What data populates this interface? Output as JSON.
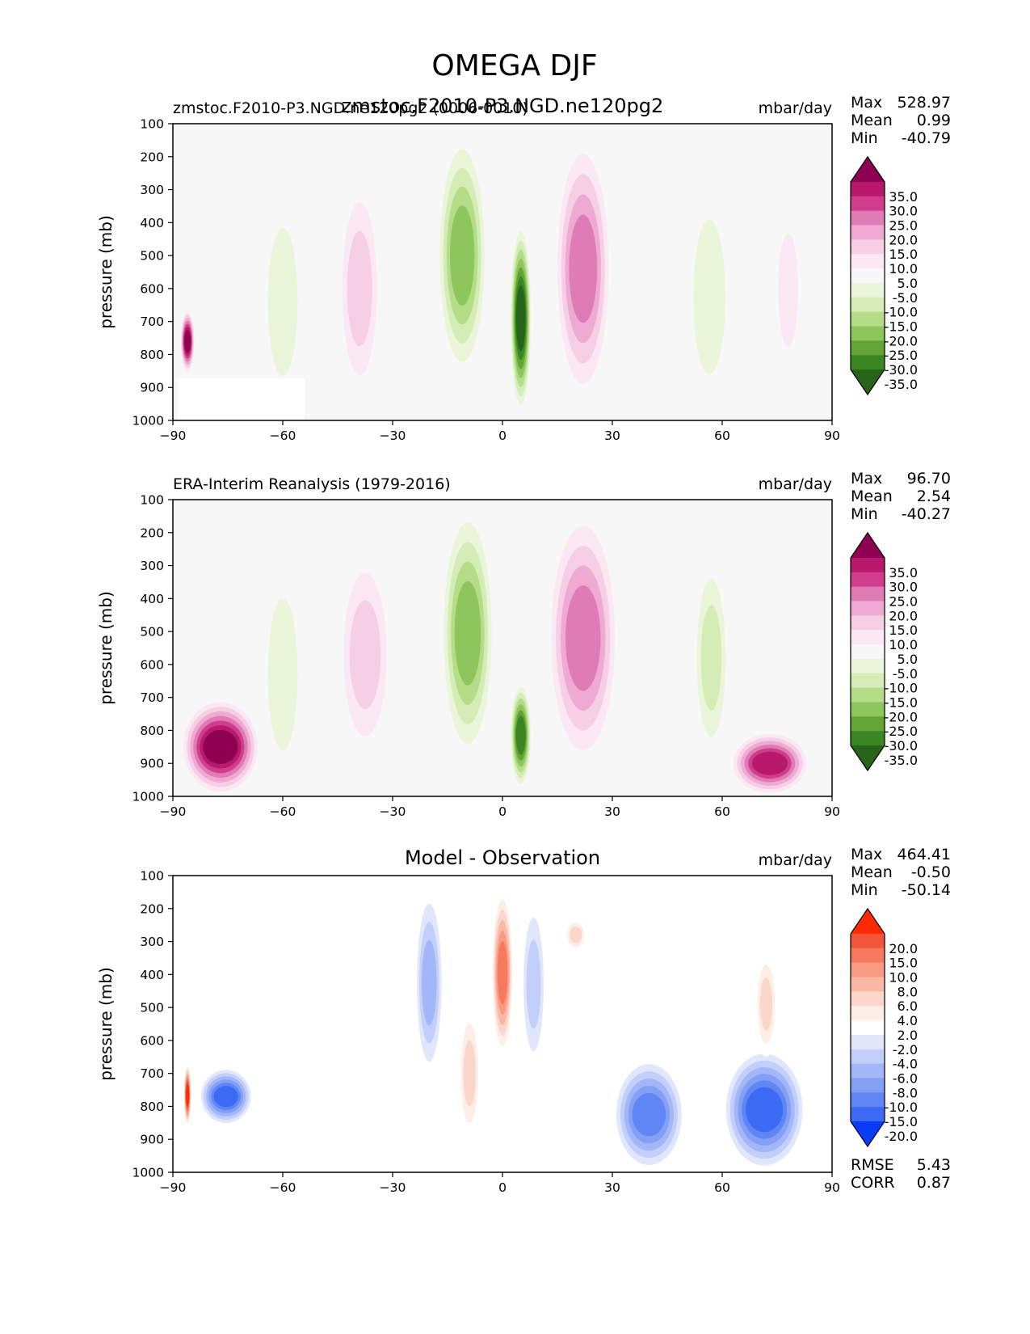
{
  "title": "OMEGA DJF",
  "chart_data": [
    {
      "type": "heatmap",
      "panel": "test",
      "left_title": "zmstoc.F2010-P3.NGD.ne120pg2 (0006-0010)",
      "center_title": "zmstoc.F2010-P3.NGD.ne120pg2",
      "units": "mbar/day",
      "ylabel": "pressure (mb)",
      "xlim": [
        -90,
        90
      ],
      "ylim": [
        1000,
        100
      ],
      "x_ticks": [
        "−90",
        "−60",
        "−30",
        "0",
        "30",
        "60",
        "90"
      ],
      "y_ticks": [
        "100",
        "200",
        "300",
        "400",
        "500",
        "600",
        "700",
        "800",
        "900",
        "1000"
      ],
      "stats": [
        {
          "label": "Max",
          "value": "528.97"
        },
        {
          "label": "Mean",
          "value": "0.99"
        },
        {
          "label": "Min",
          "value": "-40.79"
        }
      ],
      "colorbar": {
        "levels": [
          "35.0",
          "30.0",
          "25.0",
          "20.0",
          "15.0",
          "10.0",
          "5.0",
          "-5.0",
          "-10.0",
          "-15.0",
          "-20.0",
          "-25.0",
          "-30.0",
          "-35.0"
        ],
        "colors": [
          "#8e0152",
          "#b8196b",
          "#cf3d8c",
          "#e07cb5",
          "#eeaad2",
          "#f6cfe5",
          "#fbe8f2",
          "#f7f7f7",
          "#eaf5da",
          "#d4edb6",
          "#b5dd88",
          "#8cc65d",
          "#63a535",
          "#3a8623",
          "#276419"
        ]
      },
      "features": [
        {
          "name": "se-deep-descent",
          "lat": [
            -88,
            -84
          ],
          "p": [
            660,
            860
          ],
          "value": 40
        },
        {
          "name": "sh-subtropical-rising",
          "lat": [
            -66,
            -54
          ],
          "p": [
            280,
            1000
          ],
          "value": -8
        },
        {
          "name": "sh-subtropical-sinking",
          "lat": [
            -45,
            -33
          ],
          "p": [
            250,
            950
          ],
          "value": 10
        },
        {
          "name": "sh-itcz-rising",
          "lat": [
            -18,
            -4
          ],
          "p": [
            120,
            880
          ],
          "value": -22
        },
        {
          "name": "equatorial-core-rising",
          "lat": [
            2,
            8
          ],
          "p": [
            400,
            980
          ],
          "value": -35
        },
        {
          "name": "nh-subtropical-sinking",
          "lat": [
            14,
            30
          ],
          "p": [
            130,
            950
          ],
          "value": 24
        },
        {
          "name": "nh-midlat-rising",
          "lat": [
            50,
            63
          ],
          "p": [
            250,
            1000
          ],
          "value": -9
        },
        {
          "name": "nh-polar-sinking",
          "lat": [
            74,
            82
          ],
          "p": [
            330,
            880
          ],
          "value": 8
        }
      ]
    },
    {
      "type": "heatmap",
      "panel": "reference",
      "left_title": "ERA-Interim Reanalysis (1979-2016)",
      "units": "mbar/day",
      "ylabel": "pressure (mb)",
      "xlim": [
        -90,
        90
      ],
      "ylim": [
        1000,
        100
      ],
      "x_ticks": [
        "−90",
        "−60",
        "−30",
        "0",
        "30",
        "60",
        "90"
      ],
      "y_ticks": [
        "100",
        "200",
        "300",
        "400",
        "500",
        "600",
        "700",
        "800",
        "900",
        "1000"
      ],
      "stats": [
        {
          "label": "Max",
          "value": "96.70"
        },
        {
          "label": "Mean",
          "value": "2.54"
        },
        {
          "label": "Min",
          "value": "-40.27"
        }
      ],
      "colorbar": {
        "levels": [
          "35.0",
          "30.0",
          "25.0",
          "20.0",
          "15.0",
          "10.0",
          "5.0",
          "-5.0",
          "-10.0",
          "-15.0",
          "-20.0",
          "-25.0",
          "-30.0",
          "-35.0"
        ],
        "colors": [
          "#8e0152",
          "#b8196b",
          "#cf3d8c",
          "#e07cb5",
          "#eeaad2",
          "#f6cfe5",
          "#fbe8f2",
          "#f7f7f7",
          "#eaf5da",
          "#d4edb6",
          "#b5dd88",
          "#8cc65d",
          "#63a535",
          "#3a8623",
          "#276419"
        ]
      },
      "features": [
        {
          "name": "antarctic-descent",
          "lat": [
            -88,
            -66
          ],
          "p": [
            700,
            1000
          ],
          "value": 36
        },
        {
          "name": "sh-subtropical-rising",
          "lat": [
            -66,
            -54
          ],
          "p": [
            260,
            1000
          ],
          "value": -9
        },
        {
          "name": "sh-subtropical-sinking",
          "lat": [
            -45,
            -30
          ],
          "p": [
            240,
            900
          ],
          "value": 10
        },
        {
          "name": "sh-itcz-rising",
          "lat": [
            -17,
            -2
          ],
          "p": [
            110,
            900
          ],
          "value": -24
        },
        {
          "name": "equatorial-core-rising",
          "lat": [
            2,
            8
          ],
          "p": [
            650,
            980
          ],
          "value": -33
        },
        {
          "name": "nh-subtropical-sinking",
          "lat": [
            12,
            32
          ],
          "p": [
            120,
            920
          ],
          "value": 23
        },
        {
          "name": "nh-midlat-rising",
          "lat": [
            52,
            62
          ],
          "p": [
            260,
            900
          ],
          "value": -10
        },
        {
          "name": "arctic-descent",
          "lat": [
            62,
            84
          ],
          "p": [
            800,
            1000
          ],
          "value": 30
        }
      ]
    },
    {
      "type": "heatmap",
      "panel": "difference",
      "center_title": "Model - Observation",
      "units": "mbar/day",
      "ylabel": "pressure (mb)",
      "xlim": [
        -90,
        90
      ],
      "ylim": [
        1000,
        100
      ],
      "x_ticks": [
        "−90",
        "−60",
        "−30",
        "0",
        "30",
        "60",
        "90"
      ],
      "y_ticks": [
        "100",
        "200",
        "300",
        "400",
        "500",
        "600",
        "700",
        "800",
        "900",
        "1000"
      ],
      "stats": [
        {
          "label": "Max",
          "value": "464.41"
        },
        {
          "label": "Mean",
          "value": "-0.50"
        },
        {
          "label": "Min",
          "value": "-50.14"
        }
      ],
      "extra_stats": [
        {
          "label": "RMSE",
          "value": "5.43"
        },
        {
          "label": "CORR",
          "value": "0.87"
        }
      ],
      "colorbar": {
        "levels": [
          "20.0",
          "15.0",
          "10.0",
          "8.0",
          "6.0",
          "4.0",
          "2.0",
          "-2.0",
          "-4.0",
          "-6.0",
          "-8.0",
          "-10.0",
          "-15.0",
          "-20.0"
        ],
        "colors": [
          "#ff2a00",
          "#f2553a",
          "#f67a5e",
          "#f89b83",
          "#f9b9a6",
          "#fbd7cb",
          "#fdeee8",
          "#ffffff",
          "#e1e7fb",
          "#c2cffa",
          "#a3b6f7",
          "#84a0f5",
          "#6085f4",
          "#3b6bf5",
          "#0a3bfb"
        ]
      },
      "features": [
        {
          "name": "sh-polar-positive",
          "lat": [
            -87,
            -85
          ],
          "p": [
            670,
            860
          ],
          "value": 25
        },
        {
          "name": "sh-polar-negative",
          "lat": [
            -83,
            -68
          ],
          "p": [
            680,
            860
          ],
          "value": -16
        },
        {
          "name": "sh-tropical-negative",
          "lat": [
            -24,
            -16
          ],
          "p": [
            130,
            720
          ],
          "value": -7
        },
        {
          "name": "equatorial-positive",
          "lat": [
            -3,
            3
          ],
          "p": [
            140,
            650
          ],
          "value": 10
        },
        {
          "name": "sh-tropical-positive",
          "lat": [
            -12,
            -6
          ],
          "p": [
            500,
            900
          ],
          "value": 5
        },
        {
          "name": "nh-tropical-negative",
          "lat": [
            5,
            12
          ],
          "p": [
            160,
            700
          ],
          "value": -5
        },
        {
          "name": "nh-subtropical-positive",
          "lat": [
            17,
            23
          ],
          "p": [
            230,
            330
          ],
          "value": 4
        },
        {
          "name": "nh-midlat-negative",
          "lat": [
            30,
            50
          ],
          "p": [
            650,
            1000
          ],
          "value": -12
        },
        {
          "name": "nh-highlat-negative",
          "lat": [
            60,
            83
          ],
          "p": [
            620,
            1000
          ],
          "value": -18
        },
        {
          "name": "nh-polar-positive",
          "lat": [
            69,
            75
          ],
          "p": [
            330,
            650
          ],
          "value": 5
        }
      ]
    }
  ]
}
